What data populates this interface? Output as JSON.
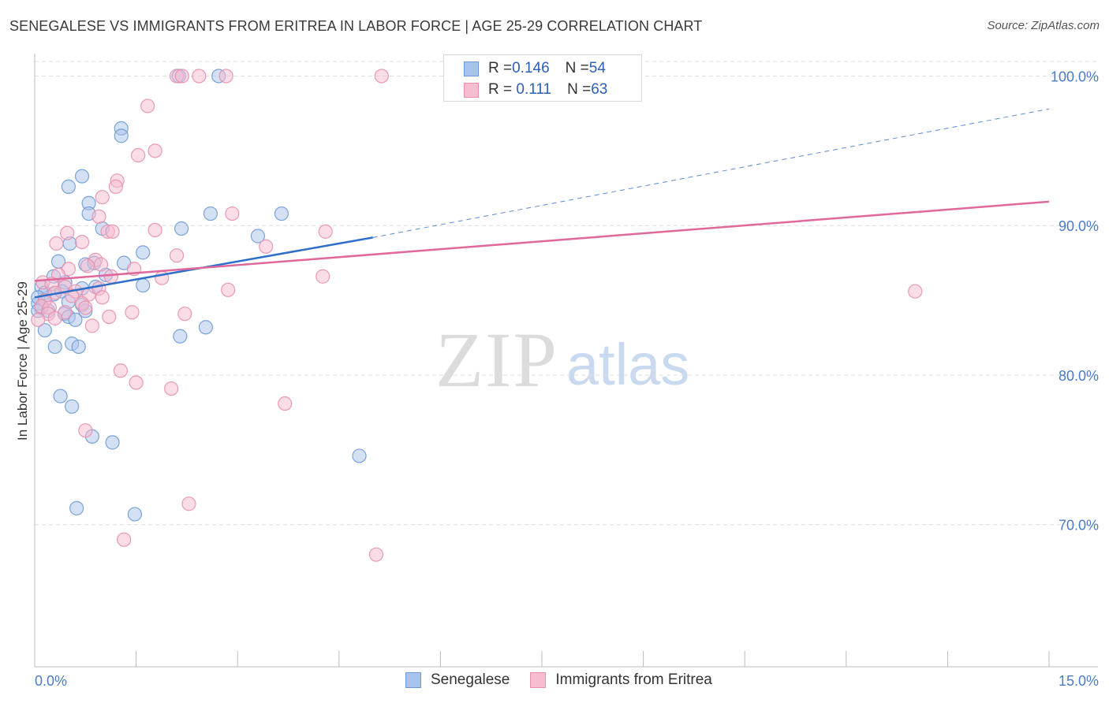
{
  "title": "SENEGALESE VS IMMIGRANTS FROM ERITREA IN LABOR FORCE | AGE 25-29 CORRELATION CHART",
  "source": "Source: ZipAtlas.com",
  "watermark": {
    "zip": "ZIP",
    "atlas": "atlas"
  },
  "legend_top": [
    {
      "r_label": "R = ",
      "r_value": "0.146",
      "n_label": "N = ",
      "n_value": "54"
    },
    {
      "r_label": "R = ",
      "r_value": " 0.111",
      "n_label": "N = ",
      "n_value": "63"
    }
  ],
  "colors": {
    "blue_fill": "#a9c4ec",
    "blue_stroke": "#6d9ad6",
    "blue_line": "#2f6fc9",
    "pink_fill": "#f6bcd0",
    "pink_stroke": "#e88fae",
    "pink_line": "#e0689a",
    "grid": "#dedede",
    "axis_text": "#4a7bc8"
  },
  "chart_data": {
    "type": "scatter",
    "title": "SENEGALESE VS IMMIGRANTS FROM ERITREA IN LABOR FORCE | AGE 25-29 CORRELATION CHART",
    "xlabel": "",
    "ylabel": "In Labor Force | Age 25-29",
    "xlim": [
      0,
      15
    ],
    "ylim": [
      60.5,
      101.5
    ],
    "x_tick_labels": [
      {
        "value": 0,
        "label": "0.0%"
      },
      {
        "value": 15,
        "label": "15.0%"
      }
    ],
    "x_minor_ticks": [
      1.5,
      3.0,
      4.5,
      6.0,
      7.5,
      9.0,
      10.5,
      12.0,
      13.5,
      15.0
    ],
    "y_ticks": [
      {
        "value": 100,
        "label": "100.0%"
      },
      {
        "value": 90,
        "label": "90.0%"
      },
      {
        "value": 80,
        "label": "80.0%"
      },
      {
        "value": 70,
        "label": "70.0%"
      }
    ],
    "grid": true,
    "series": [
      {
        "name": "Senegalese",
        "color": "#a9c4ec",
        "r": 0.146,
        "n": 54,
        "trend": {
          "x0": 0,
          "y0": 85.2,
          "x1": 5.0,
          "y1": 89.2,
          "x_dash_end": 15.0,
          "y_dash_end": 97.8
        },
        "points": [
          [
            2.13,
            100.0
          ],
          [
            2.72,
            100.0
          ],
          [
            1.28,
            96.5
          ],
          [
            1.28,
            96.0
          ],
          [
            0.5,
            92.6
          ],
          [
            0.7,
            93.3
          ],
          [
            0.8,
            91.5
          ],
          [
            0.8,
            90.8
          ],
          [
            2.6,
            90.8
          ],
          [
            3.65,
            90.8
          ],
          [
            1.0,
            89.8
          ],
          [
            2.17,
            89.8
          ],
          [
            3.3,
            89.3
          ],
          [
            0.52,
            88.8
          ],
          [
            1.6,
            88.2
          ],
          [
            0.35,
            87.6
          ],
          [
            0.75,
            87.4
          ],
          [
            0.88,
            87.5
          ],
          [
            1.32,
            87.5
          ],
          [
            1.05,
            86.7
          ],
          [
            0.28,
            86.6
          ],
          [
            0.45,
            86.2
          ],
          [
            1.6,
            86.0
          ],
          [
            0.1,
            85.9
          ],
          [
            0.7,
            85.8
          ],
          [
            0.9,
            85.9
          ],
          [
            0.28,
            85.4
          ],
          [
            0.15,
            85.5
          ],
          [
            0.4,
            85.6
          ],
          [
            0.05,
            84.8
          ],
          [
            0.1,
            84.5
          ],
          [
            0.5,
            84.9
          ],
          [
            0.7,
            84.7
          ],
          [
            0.05,
            84.3
          ],
          [
            0.2,
            84.3
          ],
          [
            0.44,
            84.1
          ],
          [
            0.5,
            83.9
          ],
          [
            0.6,
            83.7
          ],
          [
            0.75,
            84.3
          ],
          [
            0.15,
            83.0
          ],
          [
            2.15,
            82.6
          ],
          [
            2.53,
            83.2
          ],
          [
            0.3,
            81.9
          ],
          [
            0.55,
            82.1
          ],
          [
            0.65,
            81.9
          ],
          [
            0.38,
            78.6
          ],
          [
            0.55,
            77.9
          ],
          [
            0.85,
            75.9
          ],
          [
            1.15,
            75.5
          ],
          [
            4.8,
            74.6
          ],
          [
            0.62,
            71.1
          ],
          [
            1.48,
            70.7
          ],
          [
            0.05,
            85.2
          ],
          [
            0.15,
            85.0
          ]
        ]
      },
      {
        "name": "Immigrants from Eritrea",
        "color": "#f6bcd0",
        "r": 0.111,
        "n": 63,
        "trend": {
          "x0": 0,
          "y0": 86.3,
          "x1": 15.0,
          "y1": 91.6
        },
        "points": [
          [
            2.1,
            100.0
          ],
          [
            2.18,
            100.0
          ],
          [
            2.43,
            100.0
          ],
          [
            2.83,
            100.0
          ],
          [
            5.13,
            100.0
          ],
          [
            1.67,
            98.0
          ],
          [
            1.78,
            95.0
          ],
          [
            1.53,
            94.7
          ],
          [
            1.22,
            93.0
          ],
          [
            1.2,
            92.6
          ],
          [
            1.0,
            91.9
          ],
          [
            0.95,
            90.6
          ],
          [
            2.92,
            90.8
          ],
          [
            1.08,
            89.6
          ],
          [
            1.15,
            89.6
          ],
          [
            1.78,
            89.7
          ],
          [
            4.3,
            89.6
          ],
          [
            0.48,
            89.5
          ],
          [
            0.32,
            88.8
          ],
          [
            0.7,
            88.9
          ],
          [
            3.42,
            88.6
          ],
          [
            2.1,
            88.0
          ],
          [
            0.9,
            87.7
          ],
          [
            0.98,
            87.4
          ],
          [
            0.78,
            87.3
          ],
          [
            1.47,
            87.1
          ],
          [
            0.5,
            87.1
          ],
          [
            0.35,
            86.7
          ],
          [
            1.13,
            86.6
          ],
          [
            1.88,
            86.5
          ],
          [
            4.26,
            86.6
          ],
          [
            0.12,
            86.2
          ],
          [
            0.25,
            86.1
          ],
          [
            0.45,
            85.9
          ],
          [
            0.6,
            85.6
          ],
          [
            0.8,
            85.4
          ],
          [
            0.95,
            85.8
          ],
          [
            2.86,
            85.7
          ],
          [
            13.02,
            85.6
          ],
          [
            0.3,
            85.5
          ],
          [
            0.55,
            85.3
          ],
          [
            1.0,
            85.2
          ],
          [
            0.15,
            85.0
          ],
          [
            0.7,
            84.8
          ],
          [
            0.1,
            84.6
          ],
          [
            0.22,
            84.5
          ],
          [
            0.45,
            84.2
          ],
          [
            0.75,
            84.5
          ],
          [
            0.2,
            84.1
          ],
          [
            1.44,
            84.2
          ],
          [
            2.22,
            84.1
          ],
          [
            0.05,
            83.7
          ],
          [
            0.3,
            83.8
          ],
          [
            1.1,
            83.9
          ],
          [
            0.85,
            83.3
          ],
          [
            1.27,
            80.3
          ],
          [
            1.5,
            79.5
          ],
          [
            2.02,
            79.1
          ],
          [
            3.7,
            78.1
          ],
          [
            0.75,
            76.3
          ],
          [
            2.28,
            71.4
          ],
          [
            1.32,
            69.0
          ],
          [
            5.05,
            68.0
          ]
        ]
      }
    ]
  }
}
